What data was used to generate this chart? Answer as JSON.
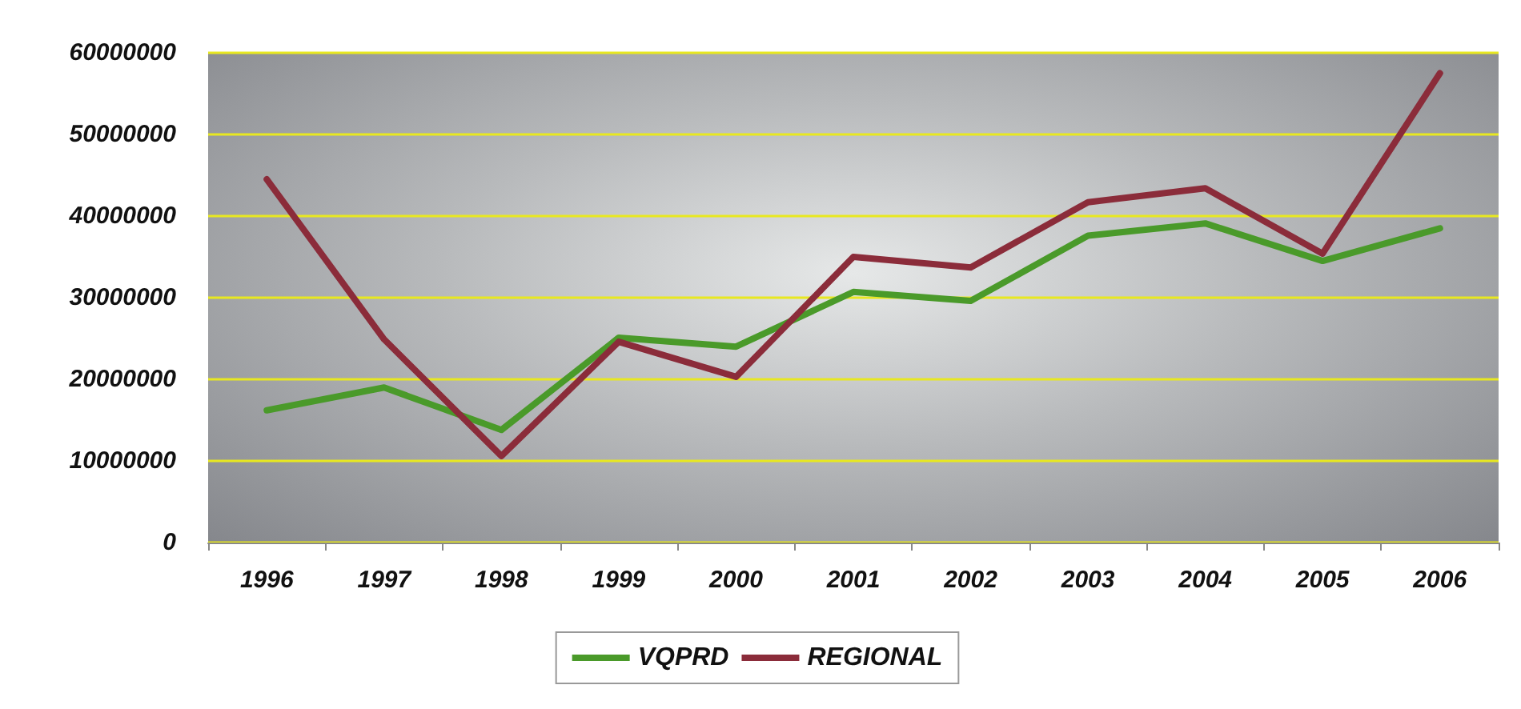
{
  "chart_data": {
    "type": "line",
    "categories": [
      "1996",
      "1997",
      "1998",
      "1999",
      "2000",
      "2001",
      "2002",
      "2003",
      "2004",
      "2005",
      "2006"
    ],
    "series": [
      {
        "name": "VQPRD",
        "color": "#4a9a2a",
        "values": [
          16200000,
          19000000,
          13800000,
          25100000,
          24000000,
          30700000,
          29600000,
          37600000,
          39100000,
          34500000,
          38500000
        ]
      },
      {
        "name": "REGIONAL",
        "color": "#8b2c3a",
        "values": [
          44500000,
          24900000,
          10600000,
          24600000,
          20300000,
          35000000,
          33700000,
          41700000,
          43400000,
          35400000,
          57500000
        ]
      }
    ],
    "ylim": [
      0,
      60000000
    ],
    "yticks": [
      0,
      10000000,
      20000000,
      30000000,
      40000000,
      50000000,
      60000000
    ],
    "grid": "y",
    "legend": "bottom",
    "marker": "none",
    "line_style": "solid"
  }
}
